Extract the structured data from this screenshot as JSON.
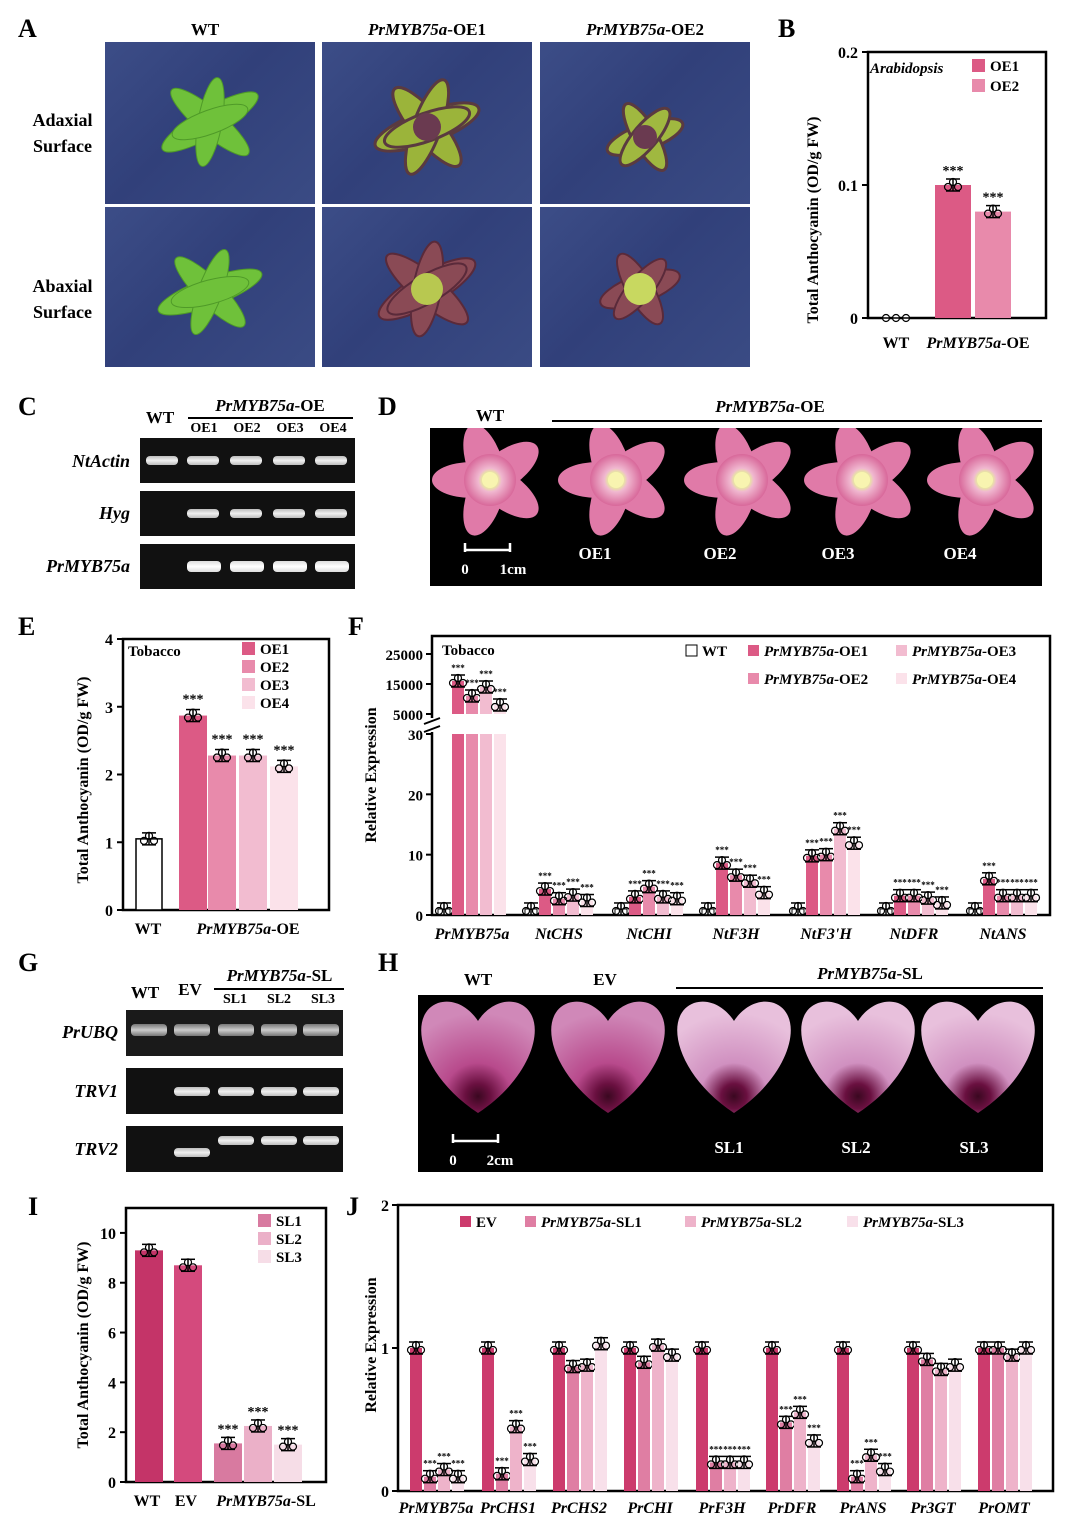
{
  "panelA": {
    "letter": "A",
    "columns": [
      {
        "name": "WT",
        "gene": "",
        "suffix": ""
      },
      {
        "name": "",
        "gene": "PrMYB75a",
        "suffix": "-OE1"
      },
      {
        "name": "",
        "gene": "PrMYB75a",
        "suffix": "-OE2"
      }
    ],
    "row1": {
      "l1": "Adaxial",
      "l2": "Surface"
    },
    "row2": {
      "l1": "Abaxial",
      "l2": "Surface"
    }
  },
  "panelB": {
    "letter": "B",
    "chart_data": {
      "type": "bar",
      "ylabel": "Total Anthocyanin (OD/g FW)",
      "ylim": [
        0,
        0.2
      ],
      "yticks": [
        "0",
        "0.1",
        "0.2"
      ],
      "annotation": "Arabidopsis",
      "legend": [
        "OE1",
        "OE2"
      ],
      "categories": [
        "WT",
        "PrMYB75a-OE"
      ],
      "xlabels": {
        "wt": "WT",
        "gene": "PrMYB75a",
        "suffix": "-OE"
      },
      "bars": [
        {
          "label": "WT",
          "value": 0
        },
        {
          "label": "OE1",
          "value": 0.1,
          "sig": "***"
        },
        {
          "label": "OE2",
          "value": 0.08,
          "sig": "***"
        }
      ]
    }
  },
  "panelC": {
    "letter": "C",
    "wt": "WT",
    "group_gene": "PrMYB75a",
    "group_suffix": "-OE",
    "lanes": [
      "OE1",
      "OE2",
      "OE3",
      "OE4"
    ],
    "genes": [
      "NtActin",
      "Hyg",
      "PrMYB75a"
    ]
  },
  "panelD": {
    "letter": "D",
    "wt": "WT",
    "group_gene": "PrMYB75a",
    "group_suffix": "-OE",
    "labels": [
      "OE1",
      "OE2",
      "OE3",
      "OE4"
    ],
    "scale_zero": "0",
    "scale_text": "1cm"
  },
  "panelE": {
    "letter": "E",
    "chart_data": {
      "type": "bar",
      "ylabel": "Total Anthocyanin (OD/g FW)",
      "ylim": [
        0,
        4
      ],
      "yticks": [
        "0",
        "1",
        "2",
        "3",
        "4"
      ],
      "annotation": "Tobacco",
      "legend": [
        "OE1",
        "OE2",
        "OE3",
        "OE4"
      ],
      "xlabels": {
        "wt": "WT",
        "gene": "PrMYB75a",
        "suffix": "-OE"
      },
      "bars": [
        {
          "label": "WT",
          "value": 1.05
        },
        {
          "label": "OE1",
          "value": 2.87,
          "sig": "***"
        },
        {
          "label": "OE2",
          "value": 2.28,
          "sig": "***"
        },
        {
          "label": "OE3",
          "value": 2.28,
          "sig": "***"
        },
        {
          "label": "OE4",
          "value": 2.12,
          "sig": "***"
        }
      ]
    }
  },
  "panelF": {
    "letter": "F",
    "chart_data": {
      "type": "bar",
      "ylabel": "Relative Expression",
      "annotation": "Tobacco",
      "upper_ticks": [
        "25000",
        "15000",
        "5000"
      ],
      "lower_ticks": [
        "0",
        "10",
        "20",
        "30"
      ],
      "legend": [
        {
          "gene": "",
          "name": "WT"
        },
        {
          "gene": "PrMYB75a",
          "name": "-OE1"
        },
        {
          "gene": "PrMYB75a",
          "name": "-OE2"
        },
        {
          "gene": "PrMYB75a",
          "name": "-OE3"
        },
        {
          "gene": "PrMYB75a",
          "name": "-OE4"
        }
      ],
      "categories": [
        "PrMYB75a",
        "NtCHS",
        "NtCHI",
        "NtF3H",
        "NtF3'H",
        "NtDFR",
        "NtANS"
      ],
      "series": [
        {
          "name": "WT",
          "values": [
            1,
            1,
            1,
            1,
            1,
            1,
            1
          ]
        },
        {
          "name": "PrMYB75a-OE1",
          "values": [
            16000,
            4.3,
            3.0,
            8.6,
            9.8,
            3.2,
            6.0
          ]
        },
        {
          "name": "PrMYB75a-OE2",
          "values": [
            11000,
            2.7,
            4.7,
            6.6,
            10.0,
            3.2,
            3.2
          ]
        },
        {
          "name": "PrMYB75a-OE3",
          "values": [
            14000,
            3.3,
            3.0,
            5.6,
            14.3,
            2.8,
            3.2
          ]
        },
        {
          "name": "PrMYB75a-OE4",
          "values": [
            8000,
            2.4,
            2.7,
            3.7,
            11.9,
            2.0,
            3.2
          ]
        }
      ],
      "sig": "***"
    }
  },
  "panelG": {
    "letter": "G",
    "wt": "WT",
    "ev": "EV",
    "group_gene": "PrMYB75a",
    "group_suffix": "-SL",
    "lanes": [
      "SL1",
      "SL2",
      "SL3"
    ],
    "genes": [
      "PrUBQ",
      "TRV1",
      "TRV2"
    ]
  },
  "panelH": {
    "letter": "H",
    "wt": "WT",
    "ev": "EV",
    "group_gene": "PrMYB75a",
    "group_suffix": "-SL",
    "labels": [
      "SL1",
      "SL2",
      "SL3"
    ],
    "scale_zero": "0",
    "scale_text": "2cm"
  },
  "panelI": {
    "letter": "I",
    "chart_data": {
      "type": "bar",
      "ylabel": "Total Anthocyanin (OD/g FW)",
      "ylim": [
        0,
        10
      ],
      "yticks": [
        "0",
        "2",
        "4",
        "6",
        "8",
        "10"
      ],
      "legend": [
        "SL1",
        "SL2",
        "SL3"
      ],
      "xlabels": {
        "wt": "WT",
        "ev": "EV",
        "gene": "PrMYB75a",
        "suffix": "-SL"
      },
      "bars": [
        {
          "label": "WT",
          "value": 9.3
        },
        {
          "label": "EV",
          "value": 8.7
        },
        {
          "label": "SL1",
          "value": 1.55,
          "sig": "***"
        },
        {
          "label": "SL2",
          "value": 2.25,
          "sig": "***"
        },
        {
          "label": "SL3",
          "value": 1.5,
          "sig": "***"
        }
      ]
    }
  },
  "panelJ": {
    "letter": "J",
    "chart_data": {
      "type": "bar",
      "ylabel": "Relative Expression",
      "ylim": [
        0,
        2
      ],
      "yticks": [
        "0",
        "1",
        "2"
      ],
      "legend": [
        {
          "gene": "",
          "name": "EV"
        },
        {
          "gene": "PrMYB75a",
          "name": "-SL1"
        },
        {
          "gene": "PrMYB75a",
          "name": "-SL2"
        },
        {
          "gene": "PrMYB75a",
          "name": "-SL3"
        }
      ],
      "categories": [
        "PrMYB75a",
        "PrCHS1",
        "PrCHS2",
        "PrCHI",
        "PrF3H",
        "PrDFR",
        "PrANS",
        "Pr3GT",
        "PrOMT"
      ],
      "series": [
        {
          "name": "EV",
          "values": [
            1,
            1,
            1,
            1,
            1,
            1,
            1,
            1,
            1
          ]
        },
        {
          "name": "PrMYB75a-SL1",
          "values": [
            0.1,
            0.12,
            0.87,
            0.9,
            0.2,
            0.48,
            0.1,
            0.92,
            1.0
          ]
        },
        {
          "name": "PrMYB75a-SL2",
          "values": [
            0.15,
            0.45,
            0.88,
            1.02,
            0.2,
            0.55,
            0.25,
            0.85,
            0.95
          ]
        },
        {
          "name": "PrMYB75a-SL3",
          "values": [
            0.1,
            0.22,
            1.03,
            0.95,
            0.2,
            0.35,
            0.15,
            0.88,
            1.0
          ]
        }
      ],
      "sig_flags": [
        [
          true,
          true,
          true
        ],
        [
          true,
          true,
          true
        ],
        [
          false,
          false,
          false
        ],
        [
          false,
          false,
          false
        ],
        [
          true,
          true,
          true
        ],
        [
          true,
          true,
          true
        ],
        [
          true,
          true,
          true
        ],
        [
          false,
          false,
          false
        ],
        [
          false,
          false,
          false
        ]
      ],
      "sig": "***"
    }
  },
  "colors": {
    "oe1": "#dc5a85",
    "oe2": "#e88aab",
    "oe3": "#f2bcd0",
    "oe4": "#fbe2ea",
    "ev": "#cc3b6d",
    "wt_dark": "#c43468"
  }
}
